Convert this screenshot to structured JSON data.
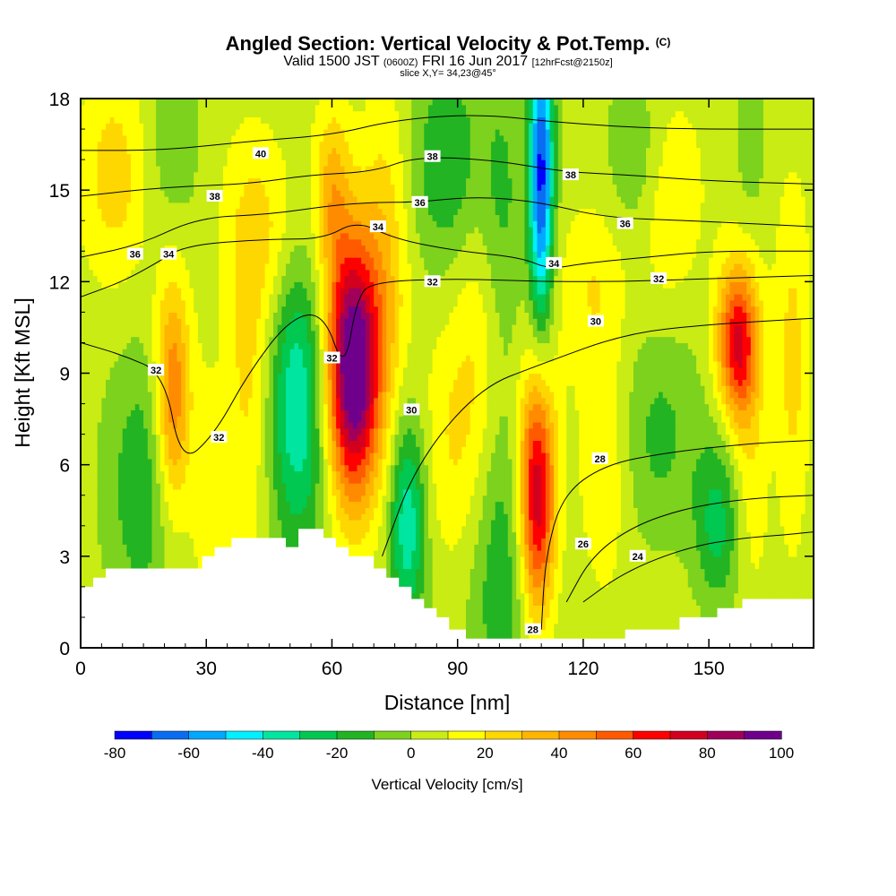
{
  "header": {
    "title": "Angled Section: Vertical Velocity & Pot.Temp.",
    "title_tag": "(C)",
    "valid_prefix": "Valid 1500 JST",
    "valid_utc": "(0600Z)",
    "valid_date": "FRI 16 Jun 2017",
    "valid_fcst": "[12hrFcst@2150z]",
    "slice": "slice X,Y= 34,23@45°"
  },
  "chart_data": {
    "type": "heatmap",
    "title": "Angled Section: Vertical Velocity & Pot.Temp.",
    "xlabel": "Distance [nm]",
    "ylabel": "Height [Kft MSL]",
    "xlim": [
      0,
      175
    ],
    "ylim": [
      0,
      18
    ],
    "x_ticks": [
      0,
      30,
      60,
      90,
      120,
      150
    ],
    "y_ticks": [
      0,
      3,
      6,
      9,
      12,
      15,
      18
    ],
    "colorbar": {
      "label": "Vertical Velocity [cm/s]",
      "tick_labels": [
        -80,
        -60,
        -40,
        -20,
        0,
        20,
        40,
        60,
        80,
        100
      ],
      "levels": [
        -80,
        -70,
        -60,
        -50,
        -40,
        -30,
        -20,
        -10,
        0,
        10,
        20,
        30,
        40,
        50,
        60,
        70,
        80,
        90,
        100
      ],
      "colors": [
        "#0000ff",
        "#0a6cf0",
        "#00a8ff",
        "#00f0ff",
        "#00e5a0",
        "#00c850",
        "#22b422",
        "#7cd21c",
        "#c8ec14",
        "#ffff00",
        "#ffd700",
        "#ffb400",
        "#ff8c00",
        "#ff5a00",
        "#ff0000",
        "#d2001e",
        "#a0005a",
        "#6e008c"
      ]
    },
    "cells": [
      {
        "x": 22,
        "y": 8.2,
        "w": 50,
        "sx": 3,
        "sy": 2.8
      },
      {
        "x": 65,
        "y": 9.2,
        "w": 105,
        "sx": 4.5,
        "sy": 3.0
      },
      {
        "x": 109,
        "y": 5.0,
        "w": 75,
        "sx": 3,
        "sy": 2.8
      },
      {
        "x": 157,
        "y": 10.0,
        "w": 70,
        "sx": 3.5,
        "sy": 1.8
      },
      {
        "x": 52,
        "y": 8.0,
        "w": -42,
        "sx": 5,
        "sy": 3.5
      },
      {
        "x": 78,
        "y": 4.2,
        "w": -42,
        "sx": 3,
        "sy": 2.5
      },
      {
        "x": 110,
        "y": 15.5,
        "w": -75,
        "sx": 2,
        "sy": 3.5
      },
      {
        "x": 15,
        "y": 5.0,
        "w": -22,
        "sx": 6,
        "sy": 3.0
      },
      {
        "x": 152,
        "y": 4.0,
        "w": -28,
        "sx": 4,
        "sy": 2.0
      },
      {
        "x": 100,
        "y": 3.0,
        "w": -22,
        "sx": 5,
        "sy": 3.5
      },
      {
        "x": 22,
        "y": 16.5,
        "w": -15,
        "sx": 5,
        "sy": 2.5
      },
      {
        "x": 88,
        "y": 16.0,
        "w": -22,
        "sx": 6,
        "sy": 2.5
      },
      {
        "x": 100,
        "y": 14.0,
        "w": -15,
        "sx": 4,
        "sy": 4.0
      },
      {
        "x": 138,
        "y": 7.0,
        "w": -15,
        "sx": 6,
        "sy": 2.5
      },
      {
        "x": 133,
        "y": 16.0,
        "w": -15,
        "sx": 5,
        "sy": 2.0
      },
      {
        "x": 160,
        "y": 16.5,
        "w": -12,
        "sx": 3,
        "sy": 2.0
      },
      {
        "x": 73,
        "y": 13.0,
        "w": 22,
        "sx": 4,
        "sy": 4.0
      },
      {
        "x": 60,
        "y": 15.0,
        "w": 28,
        "sx": 3,
        "sy": 2.0
      },
      {
        "x": 40,
        "y": 9.0,
        "w": 22,
        "sx": 4,
        "sy": 4.0
      },
      {
        "x": 95,
        "y": 10.0,
        "w": 16,
        "sx": 4,
        "sy": 5.0
      },
      {
        "x": 170,
        "y": 9.0,
        "w": 22,
        "sx": 3,
        "sy": 3.5
      },
      {
        "x": 160,
        "y": 6.0,
        "w": 16,
        "sx": 3,
        "sy": 2.5
      },
      {
        "x": 8,
        "y": 15.5,
        "w": 20,
        "sx": 6,
        "sy": 2.5
      },
      {
        "x": 45,
        "y": 13.5,
        "w": 15,
        "sx": 6,
        "sy": 2.0
      },
      {
        "x": 122,
        "y": 12.0,
        "w": 15,
        "sx": 6,
        "sy": 2.0
      },
      {
        "x": 140,
        "y": 14.5,
        "w": 15,
        "sx": 5,
        "sy": 2.5
      },
      {
        "x": 125,
        "y": 6.0,
        "w": 15,
        "sx": 4,
        "sy": 3.0
      },
      {
        "x": 88,
        "y": 6.5,
        "w": 12,
        "sx": 4,
        "sy": 3.0
      },
      {
        "x": 30,
        "y": 6.0,
        "w": 12,
        "sx": 3,
        "sy": 3.0
      }
    ],
    "terrain": [
      [
        0,
        2.0
      ],
      [
        3,
        2.0
      ],
      [
        3,
        2.3
      ],
      [
        6,
        2.3
      ],
      [
        6,
        2.6
      ],
      [
        10,
        2.6
      ],
      [
        10,
        2.6
      ],
      [
        29,
        2.6
      ],
      [
        29,
        3.0
      ],
      [
        32,
        3.0
      ],
      [
        32,
        3.3
      ],
      [
        36,
        3.3
      ],
      [
        36,
        3.6
      ],
      [
        49,
        3.6
      ],
      [
        49,
        3.3
      ],
      [
        52,
        3.3
      ],
      [
        52,
        3.9
      ],
      [
        58,
        3.9
      ],
      [
        58,
        3.6
      ],
      [
        61,
        3.6
      ],
      [
        61,
        3.3
      ],
      [
        64,
        3.3
      ],
      [
        64,
        3.0
      ],
      [
        70,
        3.0
      ],
      [
        70,
        2.6
      ],
      [
        73,
        2.6
      ],
      [
        73,
        2.3
      ],
      [
        76,
        2.3
      ],
      [
        76,
        2.0
      ],
      [
        79,
        2.0
      ],
      [
        79,
        1.6
      ],
      [
        82,
        1.6
      ],
      [
        82,
        1.3
      ],
      [
        85,
        1.3
      ],
      [
        85,
        1.0
      ],
      [
        88,
        1.0
      ],
      [
        88,
        0.6
      ],
      [
        92,
        0.6
      ],
      [
        92,
        0.3
      ],
      [
        130,
        0.3
      ],
      [
        130,
        0.6
      ],
      [
        143,
        0.6
      ],
      [
        143,
        1.0
      ],
      [
        152,
        1.0
      ],
      [
        152,
        1.3
      ],
      [
        158,
        1.3
      ],
      [
        158,
        1.6
      ],
      [
        175,
        1.6
      ]
    ],
    "contours": [
      {
        "value": 24,
        "pts": [
          [
            120,
            1.5
          ],
          [
            130,
            2.5
          ],
          [
            145,
            3.3
          ],
          [
            158,
            3.6
          ],
          [
            168,
            3.7
          ],
          [
            175,
            3.8
          ]
        ]
      },
      {
        "value": 26,
        "pts": [
          [
            116,
            1.5
          ],
          [
            122,
            3.0
          ],
          [
            132,
            4.0
          ],
          [
            145,
            4.6
          ],
          [
            160,
            4.9
          ],
          [
            175,
            5.0
          ]
        ]
      },
      {
        "value": 28,
        "pts": [
          [
            110,
            0.6
          ],
          [
            111,
            3.0
          ],
          [
            115,
            5.0
          ],
          [
            125,
            6.0
          ],
          [
            140,
            6.4
          ],
          [
            160,
            6.7
          ],
          [
            175,
            6.8
          ]
        ]
      },
      {
        "value": 30,
        "pts": [
          [
            72,
            3.0
          ],
          [
            80,
            6.0
          ],
          [
            95,
            8.5
          ],
          [
            110,
            9.3
          ],
          [
            130,
            10.3
          ],
          [
            150,
            10.6
          ],
          [
            175,
            10.8
          ]
        ]
      },
      {
        "value": 32,
        "pts": [
          [
            0,
            10.0
          ],
          [
            10,
            9.6
          ],
          [
            20,
            9.0
          ],
          [
            24,
            6.0
          ],
          [
            32,
            7.0
          ],
          [
            40,
            9.0
          ],
          [
            50,
            10.8
          ],
          [
            58,
            11.0
          ],
          [
            63,
            9.0
          ],
          [
            66,
            11.5
          ],
          [
            70,
            12.0
          ],
          [
            90,
            12.1
          ],
          [
            110,
            12.0
          ],
          [
            130,
            12.0
          ],
          [
            150,
            12.1
          ],
          [
            175,
            12.2
          ]
        ]
      },
      {
        "value": 34,
        "pts": [
          [
            0,
            11.5
          ],
          [
            10,
            12.0
          ],
          [
            18,
            12.6
          ],
          [
            25,
            13.2
          ],
          [
            45,
            13.4
          ],
          [
            58,
            13.4
          ],
          [
            66,
            14.0
          ],
          [
            75,
            13.4
          ],
          [
            90,
            13.0
          ],
          [
            105,
            12.8
          ],
          [
            112,
            12.4
          ],
          [
            120,
            12.6
          ],
          [
            135,
            12.8
          ],
          [
            150,
            13.0
          ],
          [
            175,
            13.0
          ]
        ]
      },
      {
        "value": 36,
        "pts": [
          [
            0,
            12.8
          ],
          [
            14,
            13.2
          ],
          [
            28,
            14.1
          ],
          [
            45,
            14.2
          ],
          [
            60,
            14.5
          ],
          [
            70,
            14.6
          ],
          [
            80,
            14.6
          ],
          [
            95,
            14.8
          ],
          [
            110,
            14.6
          ],
          [
            125,
            14.1
          ],
          [
            145,
            14.0
          ],
          [
            175,
            13.8
          ]
        ]
      },
      {
        "value": 38,
        "pts": [
          [
            0,
            14.8
          ],
          [
            20,
            15.1
          ],
          [
            40,
            15.2
          ],
          [
            55,
            15.5
          ],
          [
            70,
            15.6
          ],
          [
            80,
            16.1
          ],
          [
            98,
            16.0
          ],
          [
            115,
            15.6
          ],
          [
            130,
            15.5
          ],
          [
            150,
            15.3
          ],
          [
            175,
            15.2
          ]
        ]
      },
      {
        "value": 40,
        "pts": [
          [
            0,
            16.3
          ],
          [
            20,
            16.3
          ],
          [
            40,
            16.6
          ],
          [
            60,
            16.8
          ],
          [
            75,
            17.3
          ],
          [
            95,
            17.5
          ],
          [
            115,
            17.2
          ],
          [
            140,
            17.0
          ],
          [
            175,
            17.0
          ]
        ]
      }
    ],
    "contour_labels": [
      {
        "text": "40",
        "x": 43,
        "y": 16.2
      },
      {
        "text": "38",
        "x": 32,
        "y": 14.8
      },
      {
        "text": "38",
        "x": 84,
        "y": 16.1
      },
      {
        "text": "38",
        "x": 117,
        "y": 15.5
      },
      {
        "text": "36",
        "x": 13,
        "y": 12.9
      },
      {
        "text": "36",
        "x": 81,
        "y": 14.6
      },
      {
        "text": "36",
        "x": 130,
        "y": 13.9
      },
      {
        "text": "34",
        "x": 21,
        "y": 12.9
      },
      {
        "text": "34",
        "x": 71,
        "y": 13.8
      },
      {
        "text": "34",
        "x": 113,
        "y": 12.6
      },
      {
        "text": "32",
        "x": 18,
        "y": 9.1
      },
      {
        "text": "32",
        "x": 33,
        "y": 6.9
      },
      {
        "text": "32",
        "x": 60,
        "y": 9.5
      },
      {
        "text": "32",
        "x": 84,
        "y": 12.0
      },
      {
        "text": "32",
        "x": 138,
        "y": 12.1
      },
      {
        "text": "30",
        "x": 79,
        "y": 7.8
      },
      {
        "text": "30",
        "x": 123,
        "y": 10.7
      },
      {
        "text": "28",
        "x": 124,
        "y": 6.2
      },
      {
        "text": "28",
        "x": 108,
        "y": 0.6
      },
      {
        "text": "26",
        "x": 120,
        "y": 3.4
      },
      {
        "text": "24",
        "x": 133,
        "y": 3.0
      }
    ]
  }
}
